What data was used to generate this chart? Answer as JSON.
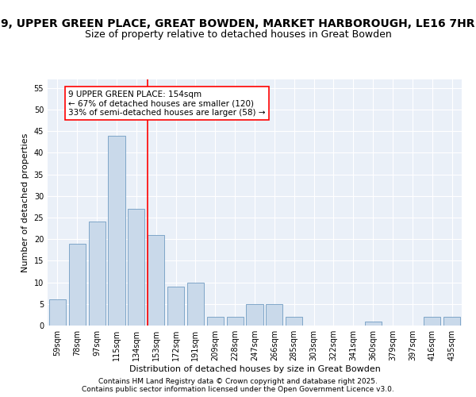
{
  "title_line1": "9, UPPER GREEN PLACE, GREAT BOWDEN, MARKET HARBOROUGH, LE16 7HR",
  "title_line2": "Size of property relative to detached houses in Great Bowden",
  "xlabel": "Distribution of detached houses by size in Great Bowden",
  "ylabel": "Number of detached properties",
  "categories": [
    "59sqm",
    "78sqm",
    "97sqm",
    "115sqm",
    "134sqm",
    "153sqm",
    "172sqm",
    "191sqm",
    "209sqm",
    "228sqm",
    "247sqm",
    "266sqm",
    "285sqm",
    "303sqm",
    "322sqm",
    "341sqm",
    "360sqm",
    "379sqm",
    "397sqm",
    "416sqm",
    "435sqm"
  ],
  "values": [
    6,
    19,
    24,
    44,
    27,
    21,
    9,
    10,
    2,
    2,
    5,
    5,
    2,
    0,
    0,
    0,
    1,
    0,
    0,
    2,
    2
  ],
  "bar_color": "#c9d9ea",
  "bar_edge_color": "#5b8db8",
  "annotation_text": "9 UPPER GREEN PLACE: 154sqm\n← 67% of detached houses are smaller (120)\n33% of semi-detached houses are larger (58) →",
  "annotation_box_color": "white",
  "annotation_box_edge_color": "red",
  "vline_color": "red",
  "vline_x": 4.575,
  "ylim": [
    0,
    57
  ],
  "yticks": [
    0,
    5,
    10,
    15,
    20,
    25,
    30,
    35,
    40,
    45,
    50,
    55
  ],
  "background_color": "#eaf0f8",
  "footer_text": "Contains HM Land Registry data © Crown copyright and database right 2025.\nContains public sector information licensed under the Open Government Licence v3.0.",
  "title_fontsize": 10,
  "subtitle_fontsize": 9,
  "axis_label_fontsize": 8,
  "tick_fontsize": 7,
  "annotation_fontsize": 7.5,
  "footer_fontsize": 6.5
}
